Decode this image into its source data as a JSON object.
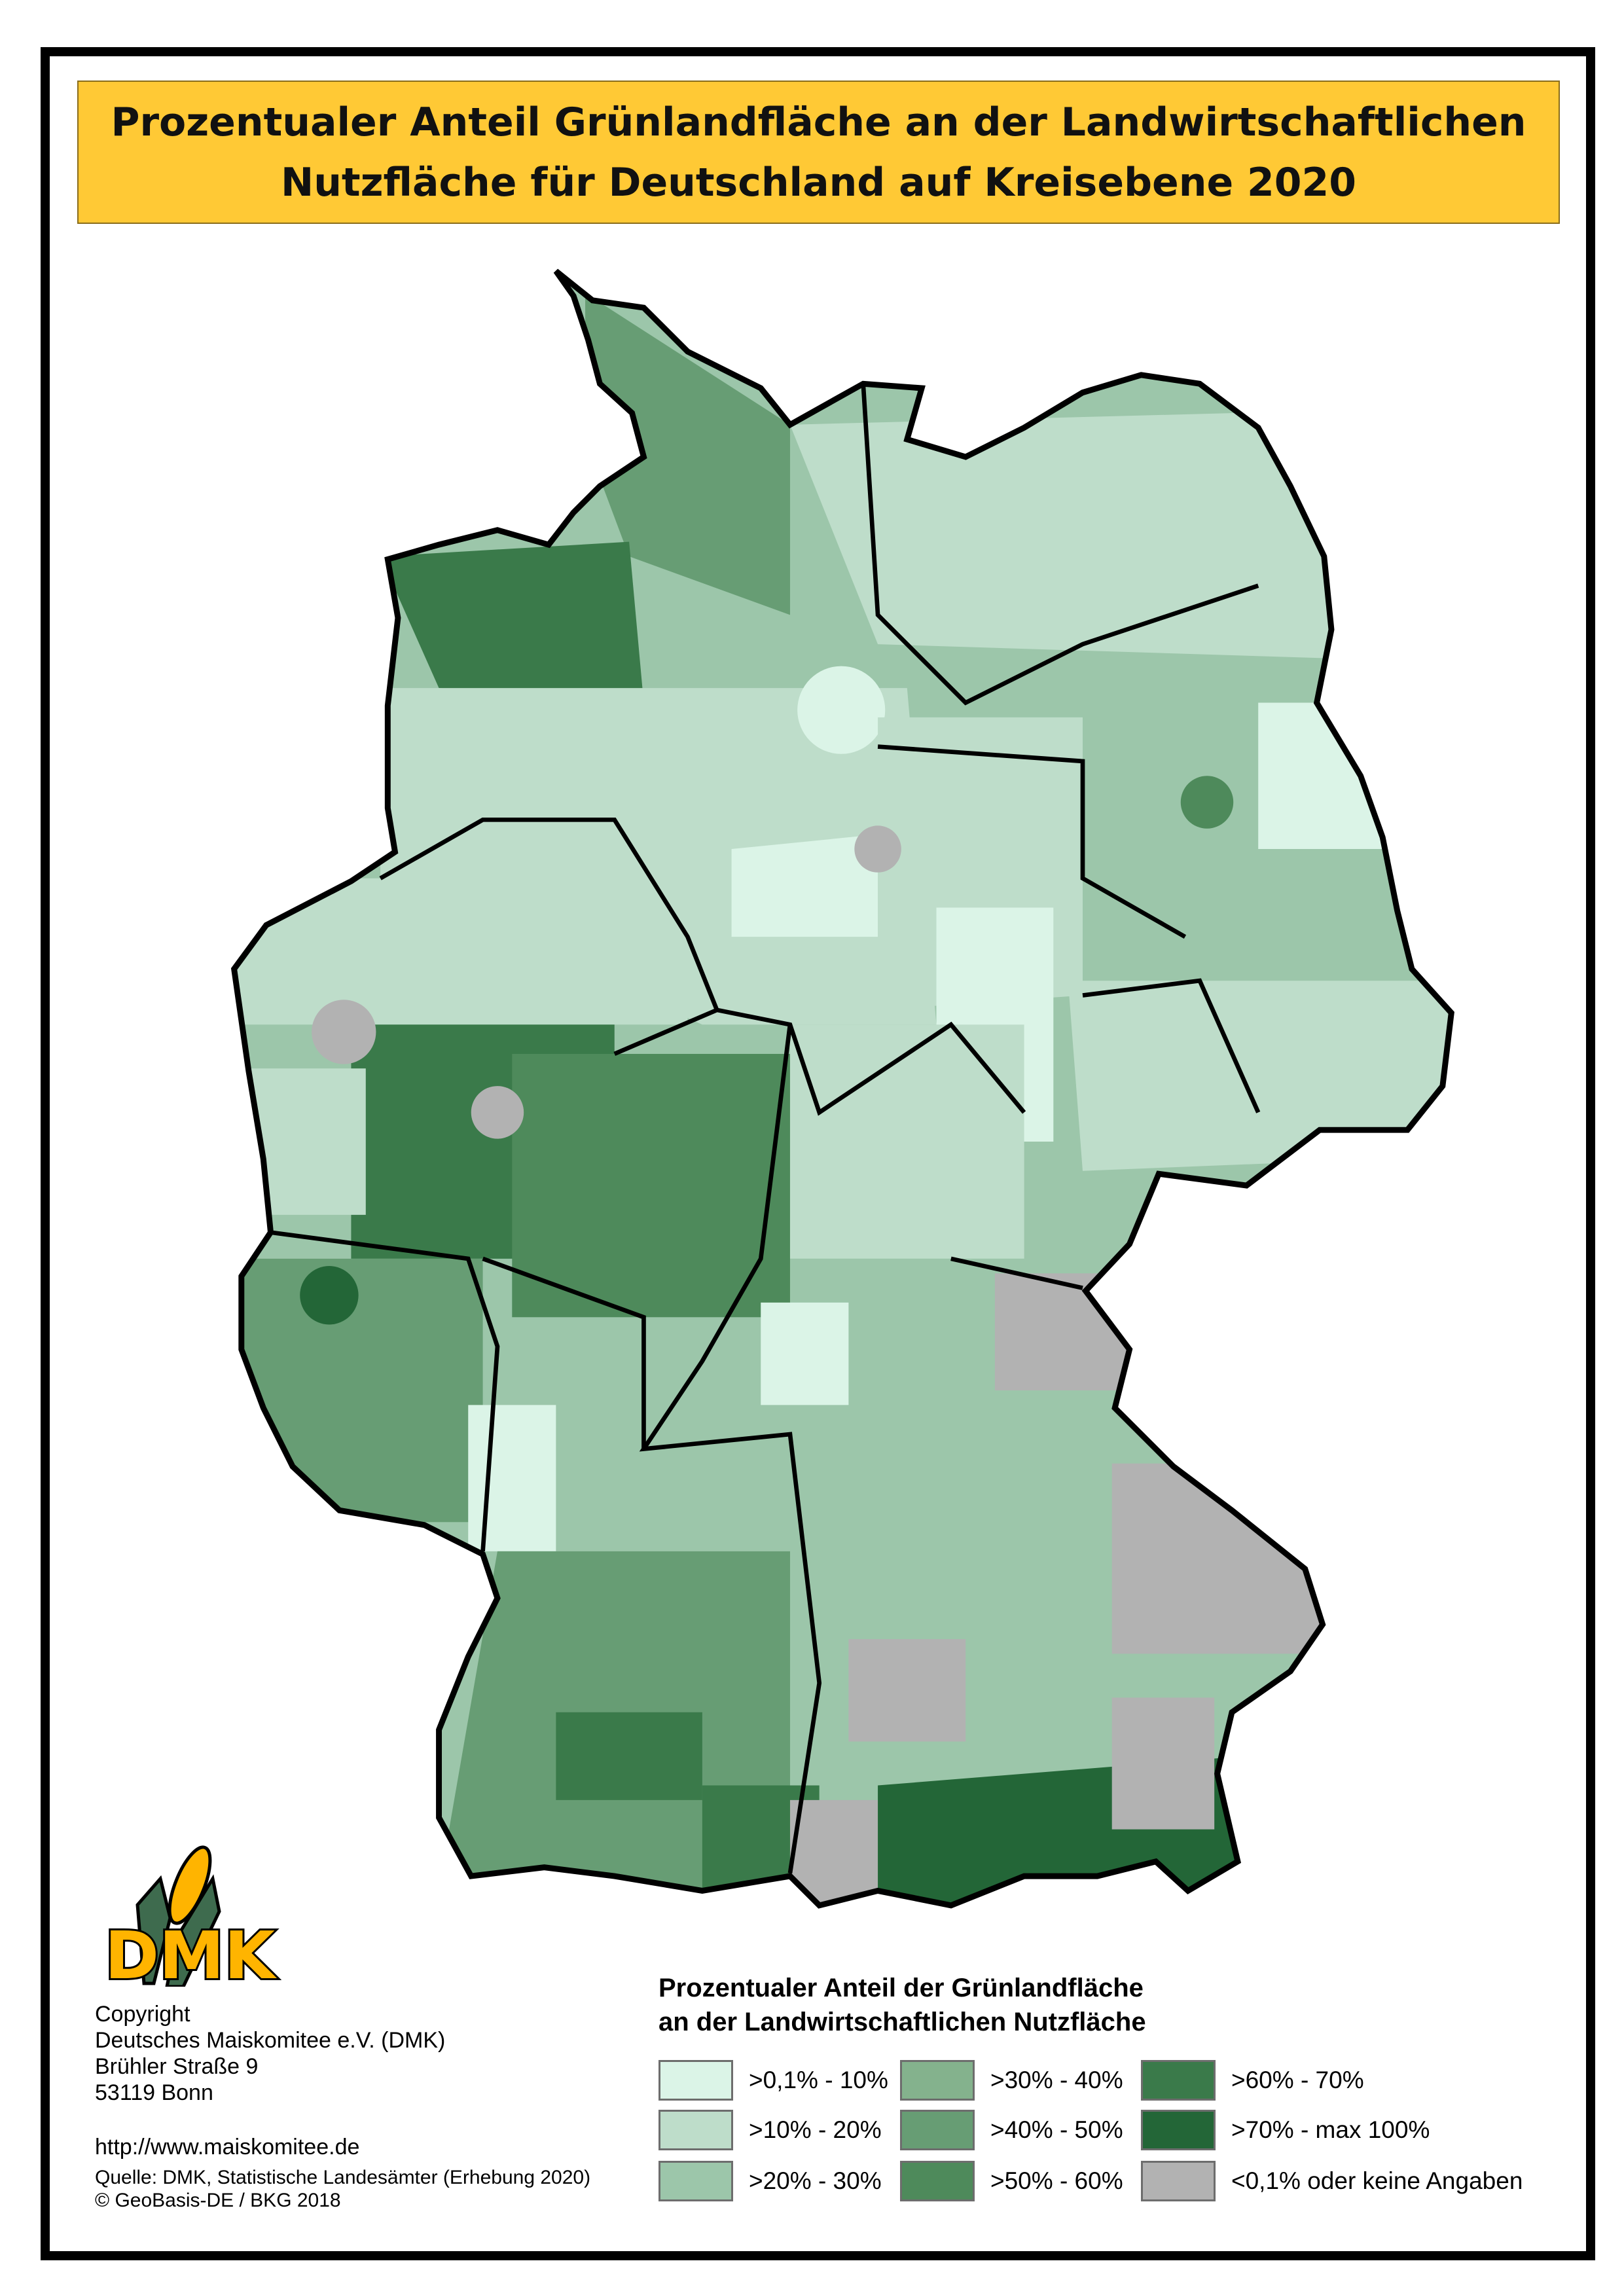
{
  "title": {
    "line1": "Prozentualer Anteil Grünlandfläche an der Landwirtschaftlichen",
    "line2": "Nutzfläche für Deutschland auf Kreisebene 2020"
  },
  "logo": {
    "text": "DMK",
    "icon": "corn-cob-icon",
    "colors": {
      "yellow": "#FFB400",
      "green": "#3E6B4E"
    }
  },
  "credits": {
    "copyright": "Copyright",
    "org": "Deutsches Maiskomitee e.V. (DMK)",
    "street": "Brühler Straße 9",
    "city": "53119 Bonn",
    "url": "http://www.maiskomitee.de",
    "source": "Quelle: DMK, Statistische Landesämter (Erhebung 2020)",
    "geobasis": "© GeoBasis-DE / BKG 2018"
  },
  "legend": {
    "title_line1": "Prozentualer Anteil der Grünlandfläche",
    "title_line2": "an der Landwirtschaftlichen Nutzfläche",
    "items": [
      {
        "label": ">0,1% - 10%",
        "color": "#DBF4E7"
      },
      {
        "label": ">10% - 20%",
        "color": "#BEDDCA"
      },
      {
        "label": ">20% - 30%",
        "color": "#9CC6AA"
      },
      {
        "label": ">30% - 40%",
        "color": "#84B28D"
      },
      {
        "label": ">40% - 50%",
        "color": "#679D74"
      },
      {
        "label": ">50% - 60%",
        "color": "#4E8A5B"
      },
      {
        "label": ">60% - 70%",
        "color": "#3A7A4A"
      },
      {
        "label": ">70% - max 100%",
        "color": "#236637"
      },
      {
        "label": "<0,1% oder keine Angaben",
        "color": "#B2B2B2"
      }
    ]
  }
}
